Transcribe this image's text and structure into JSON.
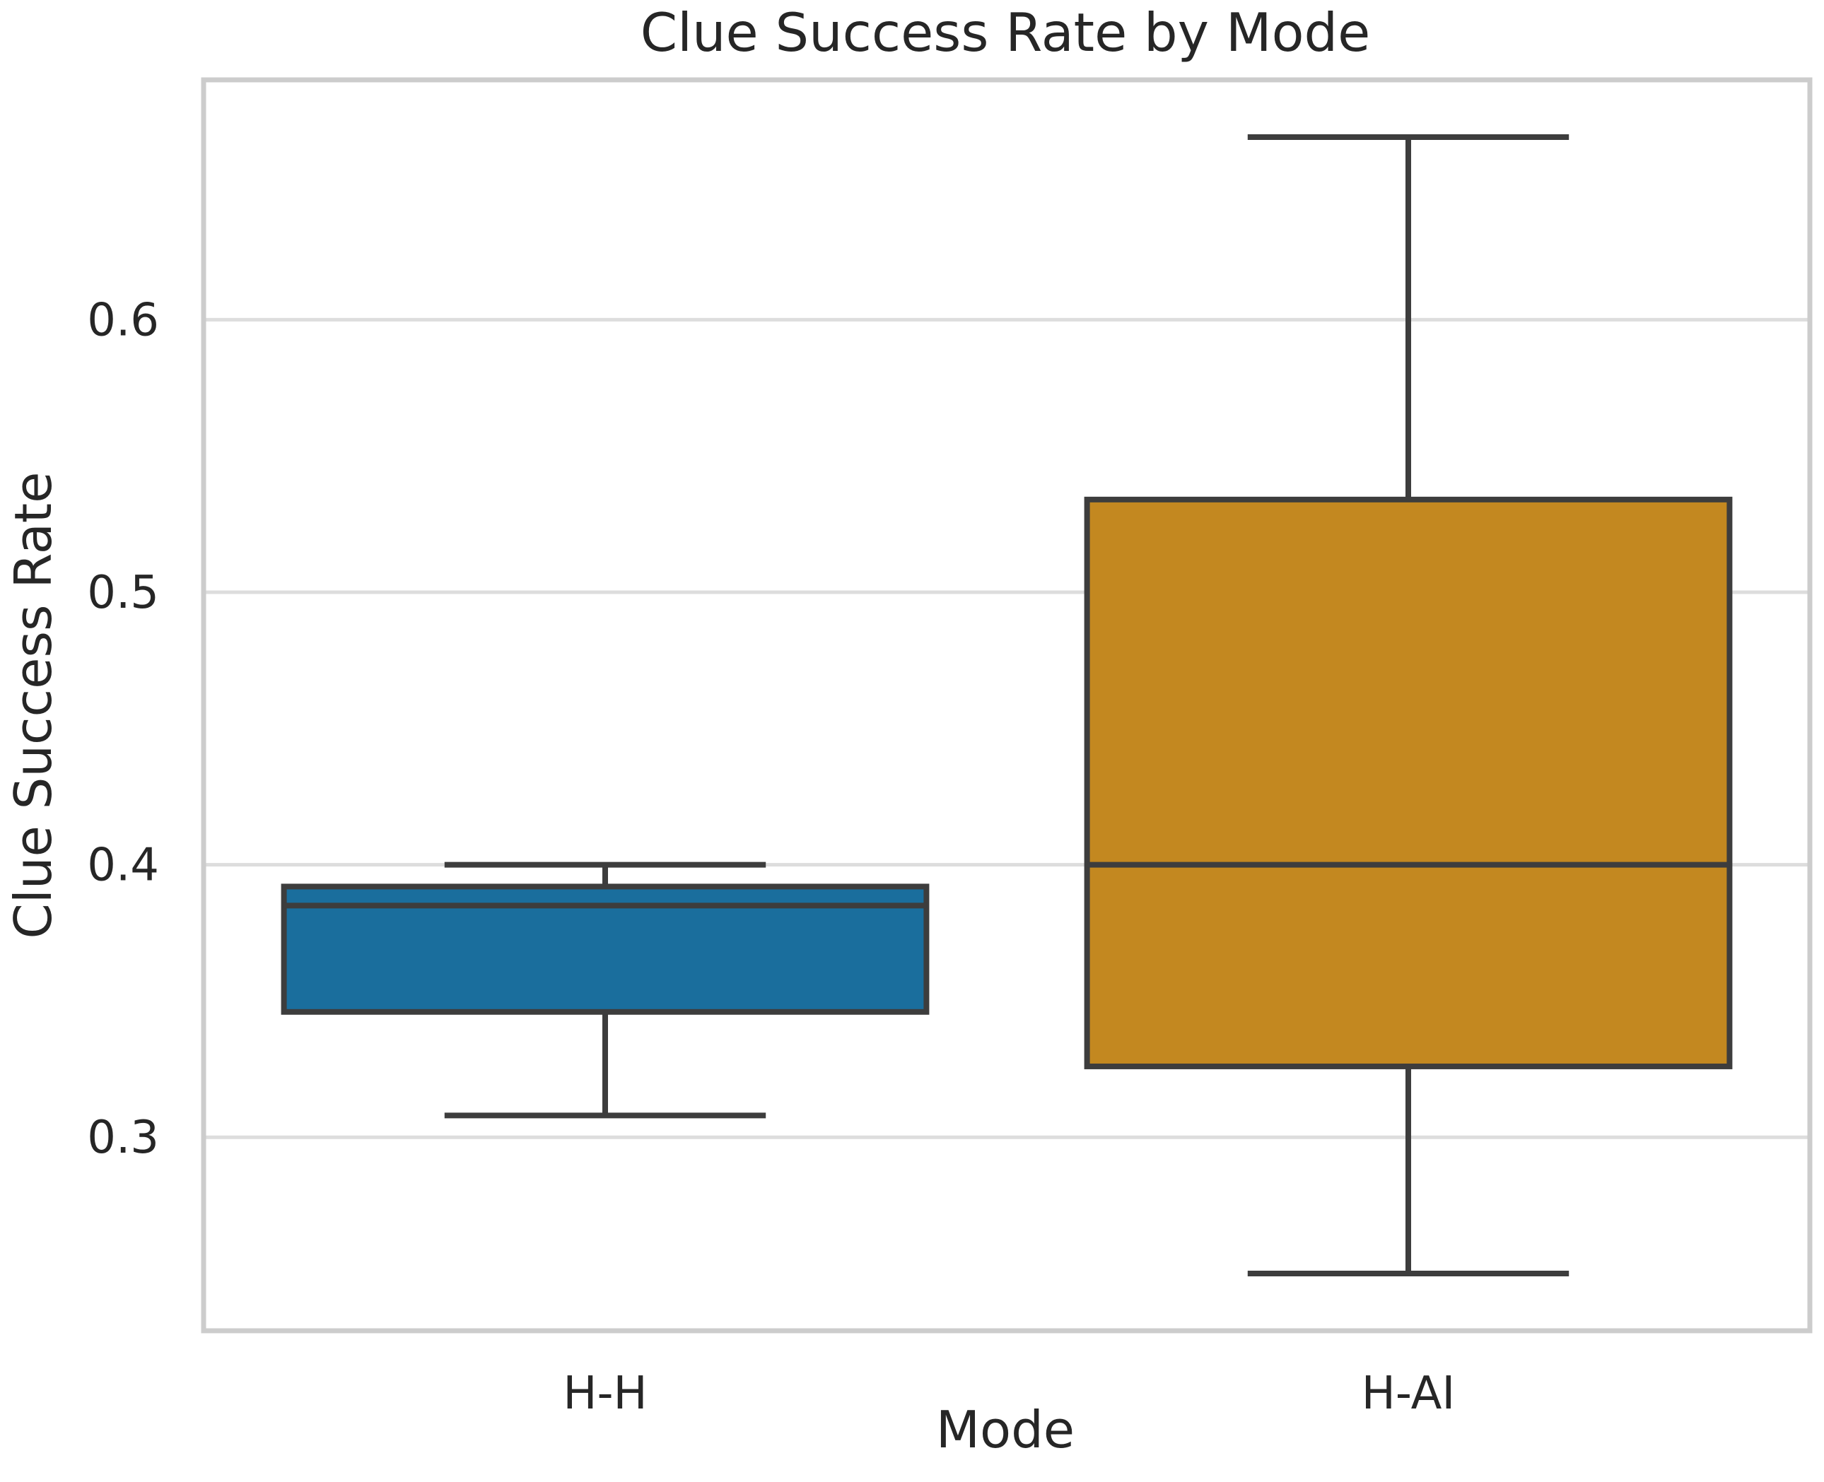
{
  "chart_data": {
    "type": "box",
    "title": "Clue Success Rate by Mode",
    "xlabel": "Mode",
    "ylabel": "Clue Success Rate",
    "ylim": [
      0.229,
      0.688
    ],
    "yticks": [
      {
        "value": 0.3,
        "label": "0.3"
      },
      {
        "value": 0.4,
        "label": "0.4"
      },
      {
        "value": 0.5,
        "label": "0.5"
      },
      {
        "value": 0.6,
        "label": "0.6"
      }
    ],
    "grid": "horizontal",
    "categories": [
      "H-H",
      "H-AI"
    ],
    "boxes": [
      {
        "category": "H-H",
        "color": "#1a6e9d",
        "min": 0.308,
        "q1": 0.346,
        "median": 0.385,
        "q3": 0.392,
        "max": 0.4
      },
      {
        "category": "H-AI",
        "color": "#c38820",
        "min": 0.25,
        "q1": 0.326,
        "median": 0.4,
        "q3": 0.534,
        "max": 0.667
      }
    ]
  }
}
